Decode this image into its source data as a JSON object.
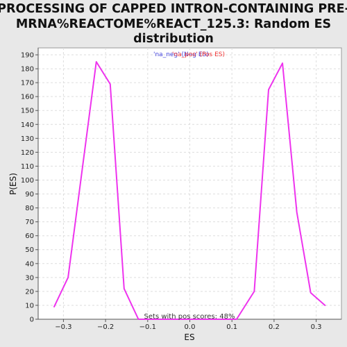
{
  "chart_data": {
    "type": "line",
    "title_lines": [
      "PROCESSING OF CAPPED INTRON-CONTAINING PRE-",
      "MRNA%REACTOME%REACT_125.3: Random ES",
      "distribution"
    ],
    "xlabel": "ES",
    "ylabel": "P(ES)",
    "xlim": [
      -0.36,
      0.36
    ],
    "ylim": [
      0,
      195
    ],
    "x_ticks": [
      -0.3,
      -0.2,
      -0.1,
      0.0,
      0.1,
      0.2,
      0.3
    ],
    "x_tick_labels": [
      "−0.3",
      "−0.2",
      "−0.1",
      "0.0",
      "0.1",
      "0.2",
      "0.3"
    ],
    "y_ticks": [
      0,
      10,
      20,
      30,
      40,
      50,
      60,
      70,
      80,
      90,
      100,
      110,
      120,
      130,
      140,
      150,
      160,
      170,
      180,
      190
    ],
    "grid": true,
    "legend_placement": "top-center",
    "legend_entries": [
      {
        "label": "'na_neg' (Neg ES)",
        "color": "#4444dd"
      },
      {
        "label": "'na_pos' (Pos ES)",
        "color": "#ee3333"
      }
    ],
    "annotation": "Sets with pos scores: 48%",
    "series": [
      {
        "color": "#ee33ee",
        "points": [
          [
            -0.322,
            9
          ],
          [
            -0.289,
            30
          ],
          [
            -0.222,
            185
          ],
          [
            -0.189,
            169
          ],
          [
            -0.156,
            22
          ],
          [
            -0.122,
            0
          ],
          [
            -0.089,
            0
          ],
          [
            -0.055,
            0
          ],
          [
            -0.022,
            0
          ],
          [
            0.011,
            0
          ],
          [
            0.045,
            0
          ],
          [
            0.078,
            0
          ],
          [
            0.111,
            0
          ],
          [
            0.153,
            20
          ],
          [
            0.187,
            165
          ],
          [
            0.22,
            184
          ],
          [
            0.254,
            77
          ],
          [
            0.287,
            19
          ],
          [
            0.321,
            10
          ]
        ]
      }
    ]
  }
}
